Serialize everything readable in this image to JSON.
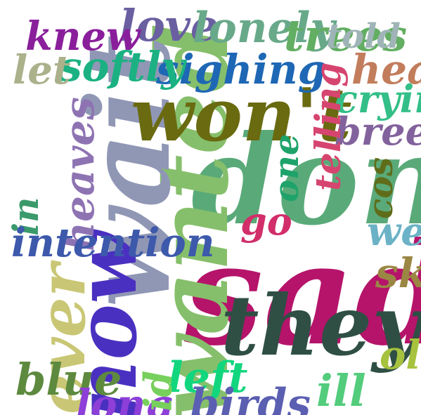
{
  "words": [
    {
      "text": "sad",
      "color": "#b5146a"
    },
    {
      "text": "don't",
      "color": "#5aaa79"
    },
    {
      "text": "wanted",
      "color": "#86bf6b"
    },
    {
      "text": "wait",
      "color": "#9097b5"
    },
    {
      "text": "now",
      "color": "#4a30c0"
    },
    {
      "text": "won't",
      "color": "#6a6a10"
    },
    {
      "text": "they",
      "color": "#2f4f45"
    },
    {
      "text": "ever",
      "color": "#c9c775"
    },
    {
      "text": "heaves",
      "color": "#8e73b3"
    },
    {
      "text": "love",
      "color": "#6a5fa1"
    },
    {
      "text": "lonely",
      "color": "#68a98a"
    },
    {
      "text": "sighing",
      "color": "#1e67b5"
    },
    {
      "text": "softly",
      "color": "#1bb182"
    },
    {
      "text": "knew",
      "color": "#8a1f9b"
    },
    {
      "text": "let",
      "color": "#aab18b"
    },
    {
      "text": "trees",
      "color": "#9fb4b7"
    },
    {
      "text": "told",
      "color": "#c27d5c"
    },
    {
      "text": "heart",
      "color": "#33bf87"
    },
    {
      "text": "crying",
      "color": "#82629c"
    },
    {
      "text": "breeze",
      "color": "#d6456f"
    },
    {
      "text": "telling",
      "color": "#1ea36a"
    },
    {
      "text": "one",
      "color": "#5f6d1a"
    },
    {
      "text": "cos",
      "color": "#d12e6a"
    },
    {
      "text": "go",
      "color": "#3b9a6c"
    },
    {
      "text": "we",
      "color": "#3d59ab"
    },
    {
      "text": "sky",
      "color": "#6bb2c6"
    },
    {
      "text": "in",
      "color": "#9b8744"
    },
    {
      "text": "intention",
      "color": "#12d67e"
    },
    {
      "text": "left",
      "color": "#5d8a3e"
    },
    {
      "text": "blue",
      "color": "#8d3fd8"
    },
    {
      "text": "long",
      "color": "#5b5fb1"
    },
    {
      "text": "birds",
      "color": "#53cc7c"
    },
    {
      "text": "ill",
      "color": "#a7c23e"
    },
    {
      "text": "old",
      "color": "#77d05c"
    },
    {
      "text": "id",
      "color": "#62ae62"
    }
  ]
}
